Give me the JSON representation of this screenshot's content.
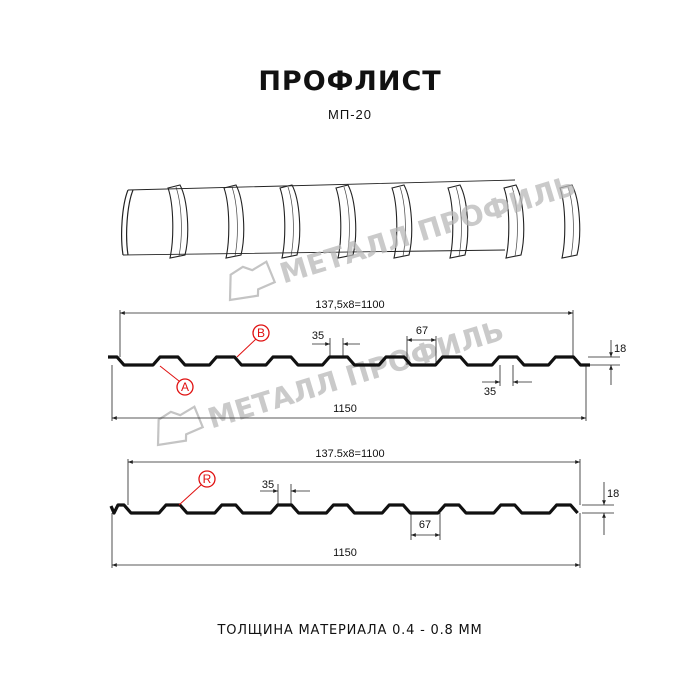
{
  "title": "ПРОФЛИСТ",
  "subtitle": "МП-20",
  "watermark": "МЕТАЛЛ ПРОФИЛЬ",
  "profile_1": {
    "pitch_label": "137,5x8=1100",
    "total_width_label": "1150",
    "top_shelf_label": "35",
    "bottom_shelf_label": "35",
    "trough_label": "67",
    "height_label": "18",
    "markers": [
      "B",
      "A"
    ]
  },
  "profile_2": {
    "pitch_label": "137.5x8=1100",
    "total_width_label": "1150",
    "top_shelf_label": "35",
    "trough_label": "67",
    "height_label": "18",
    "markers": [
      "R"
    ]
  },
  "footer": "ТОЛЩИНА МАТЕРИАЛА 0.4 - 0.8 ММ",
  "colors": {
    "marker": "#e01010",
    "profile": "#111111",
    "watermark": "#b9b9b9"
  }
}
